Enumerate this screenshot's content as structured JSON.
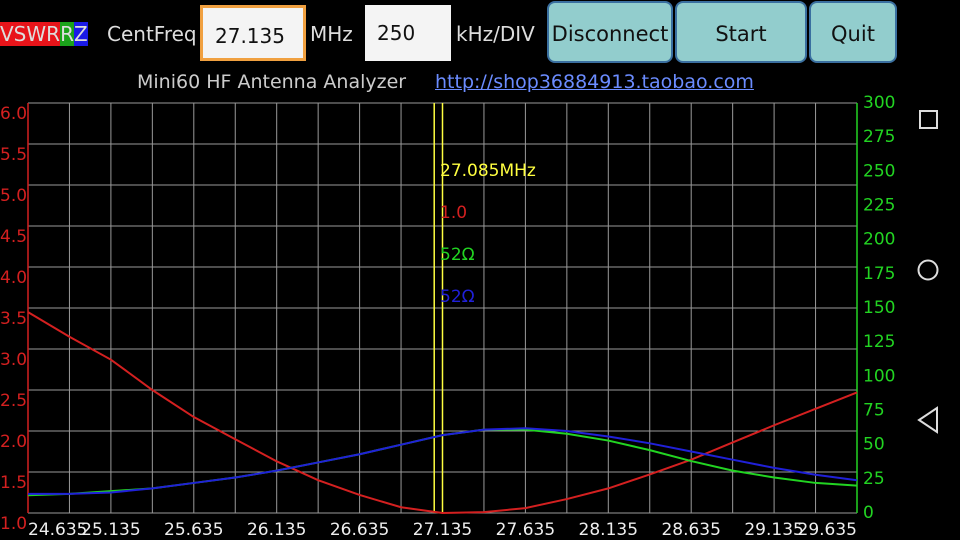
{
  "toolbar": {
    "legend": [
      {
        "text": "VSWR",
        "color": "#e8141a"
      },
      {
        "text": "R",
        "color": "#1aa31a"
      },
      {
        "text": "Z",
        "color": "#1a1ae8"
      }
    ],
    "centfreq_label": "CentFreq",
    "centfreq": 27.135,
    "centfreq_unit": "MHz",
    "span": 250,
    "span_unit": "kHz/DIV",
    "buttons": [
      "Disconnect",
      "Start",
      "Quit"
    ]
  },
  "header": {
    "title": "Mini60 HF Antenna Analyzer",
    "link": "http://shop36884913.taobao.com"
  },
  "chart_data": {
    "type": "line",
    "x": [
      24.635,
      24.885,
      25.135,
      25.385,
      25.635,
      25.885,
      26.135,
      26.385,
      26.635,
      26.885,
      27.135,
      27.385,
      27.635,
      27.885,
      28.135,
      28.385,
      28.635,
      28.885,
      29.135,
      29.385,
      29.635
    ],
    "series": [
      {
        "name": "VSWR",
        "color": "#d42020",
        "values": [
          3.45,
          3.15,
          2.87,
          2.5,
          2.17,
          1.9,
          1.63,
          1.4,
          1.22,
          1.07,
          1.0,
          1.01,
          1.06,
          1.17,
          1.3,
          1.47,
          1.65,
          1.86,
          2.07,
          2.27,
          2.47
        ]
      },
      {
        "name": "R",
        "color": "#22d422",
        "axis": "y2",
        "values": [
          13,
          14,
          16,
          18,
          22,
          26,
          31,
          37,
          43,
          50,
          57,
          61,
          61,
          58,
          53,
          46,
          38,
          31,
          26,
          22,
          20
        ]
      },
      {
        "name": "Z",
        "color": "#2020d8",
        "axis": "y2",
        "values": [
          14,
          14,
          15,
          18,
          22,
          26,
          31,
          37,
          43,
          50,
          57,
          61,
          62,
          60,
          56,
          51,
          45,
          39,
          33,
          28,
          24
        ]
      }
    ],
    "xlim": [
      24.635,
      29.635
    ],
    "xticks": [
      24.635,
      25.135,
      25.635,
      26.135,
      26.635,
      27.135,
      27.635,
      28.135,
      28.635,
      29.135,
      29.635
    ],
    "ylim": [
      1,
      6
    ],
    "yticks": [
      {
        "value": 1,
        "label": "1.0"
      },
      {
        "value": 1.5,
        "label": "1.5"
      },
      {
        "value": 2,
        "label": "2.0"
      },
      {
        "value": 2.5,
        "label": "2.5"
      },
      {
        "value": 3,
        "label": "3.0"
      },
      {
        "value": 3.5,
        "label": "3.5"
      },
      {
        "value": 4,
        "label": "4.0"
      },
      {
        "value": 4.5,
        "label": "4.5"
      },
      {
        "value": 5,
        "label": "5.0"
      },
      {
        "value": 5.5,
        "label": "5.5"
      },
      {
        "value": 6,
        "label": "6.0"
      }
    ],
    "y2lim": [
      0,
      300
    ],
    "y2ticks": [
      0,
      25,
      50,
      75,
      100,
      125,
      150,
      175,
      200,
      225,
      250,
      275,
      300
    ],
    "grid": true,
    "cursor_x": 27.085,
    "cursor_color": "#ffff40",
    "annotations": [
      {
        "text": "27.085MHz",
        "color": "#ffff40"
      },
      {
        "text": "1.0",
        "color": "#d42020"
      },
      {
        "text": "52Ω",
        "color": "#22d422"
      },
      {
        "text": "52Ω",
        "color": "#2020d8"
      }
    ]
  }
}
